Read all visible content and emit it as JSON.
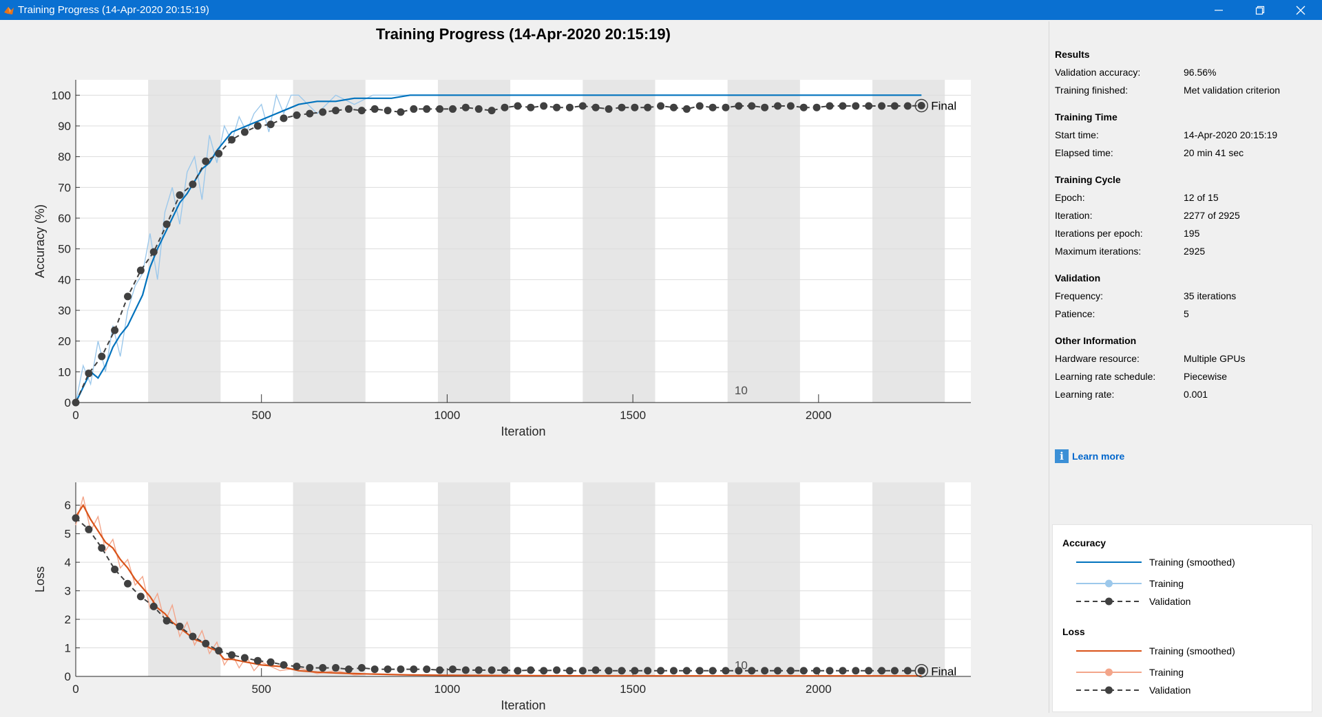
{
  "window": {
    "title": "Training Progress (14-Apr-2020 20:15:19)",
    "controls": {
      "minimize": "minimize-icon",
      "maximize": "restore-icon",
      "close": "close-icon"
    }
  },
  "figure_title": "Training Progress (14-Apr-2020 20:15:19)",
  "chart_data": [
    {
      "type": "line",
      "title": "",
      "xlabel": "Iteration",
      "ylabel": "Accuracy (%)",
      "xlim": [
        0,
        2410
      ],
      "ylim": [
        0,
        105
      ],
      "xticks": [
        0,
        500,
        1000,
        1500,
        2000
      ],
      "yticks": [
        0,
        10,
        20,
        30,
        40,
        50,
        60,
        70,
        80,
        90,
        100
      ],
      "grid": true,
      "epoch_shading": [
        195,
        390,
        585,
        780,
        975,
        1170,
        1365,
        1560,
        1755,
        1950,
        2145,
        2340
      ],
      "annotations": [
        {
          "text": "10",
          "x": 1785,
          "y": 4
        },
        {
          "text": "Final",
          "x": 2277,
          "y": 96.6
        }
      ],
      "series": [
        {
          "name": "Training (smoothed)",
          "color": "#0072bd",
          "x": [
            0,
            20,
            40,
            60,
            80,
            100,
            120,
            140,
            160,
            180,
            200,
            220,
            240,
            260,
            280,
            300,
            320,
            340,
            360,
            380,
            400,
            420,
            440,
            460,
            480,
            500,
            520,
            540,
            560,
            580,
            600,
            650,
            700,
            750,
            800,
            850,
            900,
            1000,
            1100,
            1200,
            1300,
            1400,
            1500,
            1600,
            1700,
            1800,
            1900,
            2000,
            2100,
            2200,
            2277
          ],
          "y": [
            0,
            5,
            10,
            8,
            12,
            18,
            22,
            25,
            30,
            35,
            44,
            50,
            55,
            60,
            65,
            68,
            72,
            76,
            78,
            82,
            85,
            88,
            89,
            90,
            91,
            92,
            93,
            94,
            95,
            96,
            97,
            98,
            98,
            99,
            99,
            99,
            100,
            100,
            100,
            100,
            100,
            100,
            100,
            100,
            100,
            100,
            100,
            100,
            100,
            100,
            100
          ]
        },
        {
          "name": "Training",
          "color": "#9cc8eb",
          "x": [
            0,
            20,
            40,
            60,
            80,
            100,
            120,
            140,
            160,
            180,
            200,
            220,
            240,
            260,
            280,
            300,
            320,
            340,
            360,
            380,
            400,
            420,
            440,
            460,
            480,
            500,
            520,
            540,
            560,
            580,
            600,
            650,
            700,
            750,
            800,
            850,
            900,
            1000,
            1100,
            1200,
            1300,
            1400,
            1500,
            1600,
            1700,
            1800,
            1900,
            2000,
            2100,
            2200,
            2277
          ],
          "y": [
            0,
            12,
            6,
            20,
            10,
            25,
            15,
            30,
            38,
            42,
            55,
            40,
            62,
            70,
            58,
            75,
            80,
            66,
            87,
            78,
            90,
            85,
            93,
            88,
            94,
            97,
            88,
            100,
            94,
            100,
            100,
            94,
            100,
            97,
            100,
            100,
            100,
            100,
            100,
            100,
            100,
            100,
            100,
            100,
            100,
            100,
            100,
            100,
            100,
            100,
            100
          ]
        },
        {
          "name": "Validation",
          "color": "#404040",
          "x": [
            0,
            35,
            70,
            105,
            140,
            175,
            210,
            245,
            280,
            315,
            350,
            385,
            420,
            455,
            490,
            525,
            560,
            595,
            630,
            665,
            700,
            735,
            770,
            805,
            840,
            875,
            910,
            945,
            980,
            1015,
            1050,
            1085,
            1120,
            1155,
            1190,
            1225,
            1260,
            1295,
            1330,
            1365,
            1400,
            1435,
            1470,
            1505,
            1540,
            1575,
            1610,
            1645,
            1680,
            1715,
            1750,
            1785,
            1820,
            1855,
            1890,
            1925,
            1960,
            1995,
            2030,
            2065,
            2100,
            2135,
            2170,
            2205,
            2240,
            2277
          ],
          "y": [
            0,
            9.5,
            15,
            23.5,
            34.5,
            43,
            49,
            58,
            67.5,
            71,
            78.5,
            81,
            85.5,
            88,
            90,
            90.5,
            92.5,
            93.5,
            94,
            94.5,
            95,
            95.5,
            95,
            95.5,
            95,
            94.5,
            95.5,
            95.5,
            95.5,
            95.5,
            96,
            95.5,
            95,
            96,
            96.5,
            96,
            96.5,
            96,
            96,
            96.5,
            96,
            95.5,
            96,
            96,
            96,
            96.5,
            96,
            95.5,
            96.5,
            96,
            96,
            96.5,
            96.5,
            96,
            96.5,
            96.5,
            96,
            96,
            96.5,
            96.5,
            96.5,
            96.5,
            96.5,
            96.5,
            96.5,
            96.6
          ]
        }
      ]
    },
    {
      "type": "line",
      "title": "",
      "xlabel": "Iteration",
      "ylabel": "Loss",
      "xlim": [
        0,
        2410
      ],
      "ylim": [
        0,
        6.8
      ],
      "xticks": [
        0,
        500,
        1000,
        1500,
        2000
      ],
      "yticks": [
        0,
        1,
        2,
        3,
        4,
        5,
        6
      ],
      "grid": true,
      "epoch_shading": [
        195,
        390,
        585,
        780,
        975,
        1170,
        1365,
        1560,
        1755,
        1950,
        2145,
        2340
      ],
      "annotations": [
        {
          "text": "10",
          "x": 1785,
          "y": 0.4
        },
        {
          "text": "Final",
          "x": 2277,
          "y": 0.18
        }
      ],
      "series": [
        {
          "name": "Training (smoothed)",
          "color": "#d95319",
          "x": [
            0,
            20,
            40,
            60,
            80,
            100,
            120,
            140,
            160,
            180,
            200,
            220,
            240,
            260,
            280,
            300,
            320,
            340,
            360,
            380,
            400,
            420,
            440,
            460,
            480,
            500,
            550,
            600,
            650,
            700,
            750,
            800,
            900,
            1000,
            1200,
            1400,
            1600,
            1800,
            2000,
            2200,
            2277
          ],
          "y": [
            5.6,
            6,
            5.5,
            5.1,
            4.7,
            4.5,
            4.1,
            3.8,
            3.4,
            3.1,
            2.8,
            2.4,
            2.2,
            1.9,
            1.7,
            1.5,
            1.3,
            1.2,
            1.0,
            0.9,
            0.6,
            0.6,
            0.55,
            0.5,
            0.45,
            0.4,
            0.35,
            0.2,
            0.15,
            0.12,
            0.1,
            0.08,
            0.05,
            0.04,
            0.03,
            0.02,
            0.02,
            0.02,
            0.02,
            0.02,
            0.02
          ]
        },
        {
          "name": "Training",
          "color": "#f3a58a",
          "x": [
            0,
            20,
            40,
            60,
            80,
            100,
            120,
            140,
            160,
            180,
            200,
            220,
            240,
            260,
            280,
            300,
            320,
            340,
            360,
            380,
            400,
            420,
            440,
            460,
            480,
            500,
            550,
            600,
            650,
            700,
            750,
            800,
            900,
            1000,
            1200,
            1400,
            1600,
            1800,
            2000,
            2200,
            2277
          ],
          "y": [
            5.3,
            6.3,
            5.1,
            5.6,
            4.4,
            4.8,
            3.8,
            4.1,
            3.2,
            3.5,
            2.4,
            2.9,
            1.9,
            2.5,
            1.4,
            1.9,
            1.1,
            1.6,
            0.8,
            1.2,
            0.4,
            0.8,
            0.3,
            0.7,
            0.2,
            0.5,
            0.2,
            0.3,
            0.1,
            0.2,
            0.05,
            0.1,
            0.05,
            0.03,
            0.02,
            0.02,
            0.02,
            0.02,
            0.02,
            0.02,
            0.02
          ]
        },
        {
          "name": "Validation",
          "color": "#404040",
          "x": [
            0,
            35,
            70,
            105,
            140,
            175,
            210,
            245,
            280,
            315,
            350,
            385,
            420,
            455,
            490,
            525,
            560,
            595,
            630,
            665,
            700,
            735,
            770,
            805,
            840,
            875,
            910,
            945,
            980,
            1015,
            1050,
            1085,
            1120,
            1155,
            1190,
            1225,
            1260,
            1295,
            1330,
            1365,
            1400,
            1435,
            1470,
            1505,
            1540,
            1575,
            1610,
            1645,
            1680,
            1715,
            1750,
            1785,
            1820,
            1855,
            1890,
            1925,
            1960,
            1995,
            2030,
            2065,
            2100,
            2135,
            2170,
            2205,
            2240,
            2277
          ],
          "y": [
            5.55,
            5.15,
            4.5,
            3.75,
            3.25,
            2.8,
            2.45,
            1.95,
            1.75,
            1.4,
            1.15,
            0.9,
            0.75,
            0.65,
            0.55,
            0.5,
            0.4,
            0.35,
            0.3,
            0.3,
            0.3,
            0.25,
            0.3,
            0.25,
            0.25,
            0.25,
            0.25,
            0.25,
            0.22,
            0.25,
            0.22,
            0.22,
            0.22,
            0.22,
            0.2,
            0.22,
            0.2,
            0.22,
            0.2,
            0.2,
            0.22,
            0.2,
            0.2,
            0.2,
            0.2,
            0.2,
            0.2,
            0.2,
            0.2,
            0.2,
            0.2,
            0.2,
            0.2,
            0.2,
            0.2,
            0.2,
            0.2,
            0.2,
            0.2,
            0.2,
            0.2,
            0.2,
            0.2,
            0.2,
            0.2,
            0.2
          ]
        }
      ]
    }
  ],
  "results": {
    "sections": [
      {
        "heading": "Results",
        "rows": [
          {
            "label": "Validation accuracy:",
            "value": "96.56%"
          },
          {
            "label": "Training finished:",
            "value": "Met validation criterion"
          }
        ]
      },
      {
        "heading": "Training Time",
        "rows": [
          {
            "label": "Start time:",
            "value": "14-Apr-2020 20:15:19"
          },
          {
            "label": "Elapsed time:",
            "value": "20 min 41 sec"
          }
        ]
      },
      {
        "heading": "Training Cycle",
        "rows": [
          {
            "label": "Epoch:",
            "value": "12 of 15"
          },
          {
            "label": "Iteration:",
            "value": "2277 of 2925"
          },
          {
            "label": "Iterations per epoch:",
            "value": "195"
          },
          {
            "label": "Maximum iterations:",
            "value": "2925"
          }
        ]
      },
      {
        "heading": "Validation",
        "rows": [
          {
            "label": "Frequency:",
            "value": "35 iterations"
          },
          {
            "label": "Patience:",
            "value": "5"
          }
        ]
      },
      {
        "heading": "Other Information",
        "rows": [
          {
            "label": "Hardware resource:",
            "value": "Multiple GPUs"
          },
          {
            "label": "Learning rate schedule:",
            "value": "Piecewise"
          },
          {
            "label": "Learning rate:",
            "value": "0.001"
          }
        ]
      }
    ],
    "learn_more": "Learn more",
    "info_icon": "info-icon"
  },
  "legend": {
    "groups": [
      {
        "heading": "Accuracy",
        "items": [
          {
            "label": "Training (smoothed)",
            "color": "#0072bd",
            "style": "solid"
          },
          {
            "label": "Training",
            "color": "#9cc8eb",
            "style": "solid-marker"
          },
          {
            "label": "Validation",
            "color": "#404040",
            "style": "dashed-marker"
          }
        ]
      },
      {
        "heading": "Loss",
        "items": [
          {
            "label": "Training (smoothed)",
            "color": "#d95319",
            "style": "solid"
          },
          {
            "label": "Training",
            "color": "#f3a58a",
            "style": "solid-marker"
          },
          {
            "label": "Validation",
            "color": "#404040",
            "style": "dashed-marker"
          }
        ]
      }
    ]
  }
}
